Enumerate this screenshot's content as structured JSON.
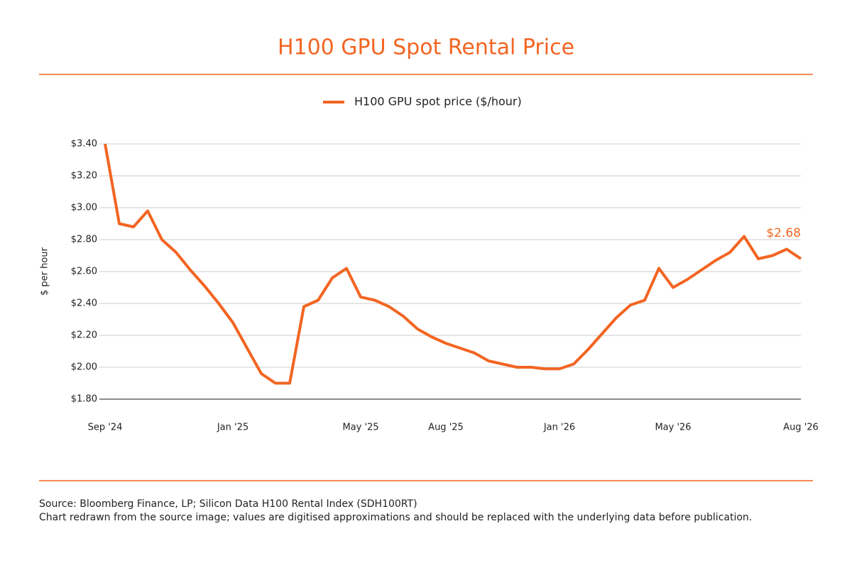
{
  "chart_data": {
    "type": "line",
    "title": "H100 GPU Spot Rental Price",
    "y_label": "$ per hour",
    "source": "Source: Bloomberg Finance, LP; Silicon Data H100 Rental Index (SDH100RT)",
    "note": "Chart redrawn from the source image; values are digitised approximations and should be replaced with the underlying data before publication.",
    "categories": [
      "Sep '24",
      null,
      null,
      null,
      null,
      null,
      null,
      null,
      null,
      "Jan '25",
      null,
      null,
      null,
      null,
      null,
      null,
      null,
      null,
      "May '25",
      null,
      null,
      null,
      null,
      null,
      "Aug '25",
      null,
      null,
      null,
      null,
      null,
      null,
      null,
      "Jan '26",
      null,
      null,
      null,
      null,
      null,
      null,
      null,
      "May '26",
      null,
      null,
      null,
      null,
      null,
      null,
      null,
      null,
      "Aug '26"
    ],
    "series": [
      {
        "name": "H100 GPU spot price ($/hour)",
        "color": "#f26522",
        "values": [
          3.4,
          2.9,
          2.88,
          2.98,
          2.8,
          2.72,
          2.61,
          2.51,
          2.4,
          2.28,
          2.12,
          1.96,
          1.9,
          1.9,
          2.38,
          2.42,
          2.56,
          2.62,
          2.44,
          2.42,
          2.38,
          2.32,
          2.24,
          2.19,
          2.15,
          2.12,
          2.09,
          2.04,
          2.02,
          2.0,
          2.0,
          1.99,
          1.99,
          2.02,
          2.11,
          2.21,
          2.31,
          2.39,
          2.42,
          2.62,
          2.5,
          2.55,
          2.61,
          2.67,
          2.72,
          2.82,
          2.68,
          2.7,
          2.74,
          2.68
        ],
        "value_labels": [
          null,
          null,
          null,
          null,
          null,
          null,
          null,
          null,
          null,
          null,
          null,
          null,
          null,
          null,
          null,
          null,
          null,
          null,
          null,
          null,
          null,
          null,
          null,
          null,
          null,
          null,
          null,
          null,
          null,
          null,
          null,
          null,
          null,
          null,
          null,
          null,
          null,
          null,
          null,
          null,
          null,
          null,
          null,
          null,
          null,
          null,
          null,
          null,
          null,
          "$2.68"
        ]
      }
    ],
    "ylim": [
      1.8,
      3.4
    ],
    "yticks": [
      {
        "value": 1.8,
        "label": "$1.80"
      },
      {
        "value": 2.0,
        "label": "$2.00"
      },
      {
        "value": 2.2,
        "label": "$2.20"
      },
      {
        "value": 2.4,
        "label": "$2.40"
      },
      {
        "value": 2.6,
        "label": "$2.60"
      },
      {
        "value": 2.8,
        "label": "$2.80"
      },
      {
        "value": 3.0,
        "label": "$3.00"
      },
      {
        "value": 3.2,
        "label": "$3.20"
      },
      {
        "value": 3.4,
        "label": "$3.40"
      }
    ],
    "grid": true,
    "legend": "top"
  }
}
